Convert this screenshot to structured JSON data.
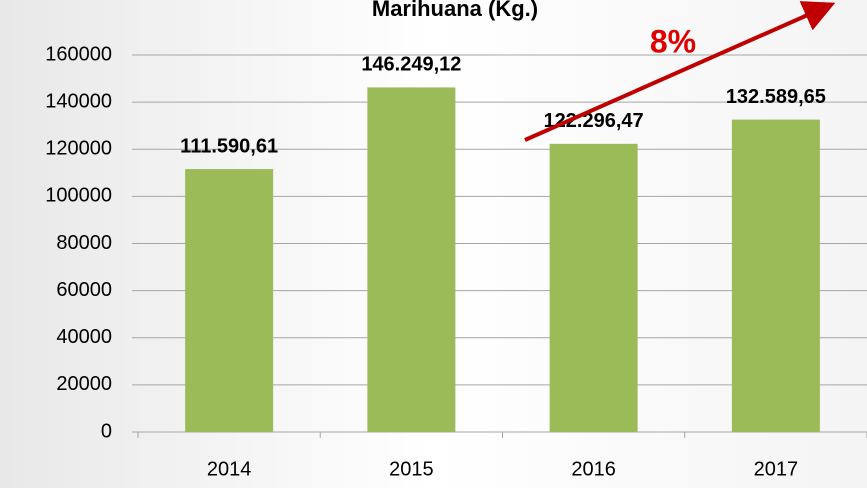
{
  "chart_data": {
    "type": "bar",
    "title": "Marihuana (Kg.)",
    "categories": [
      "2014",
      "2015",
      "2016",
      "2017"
    ],
    "values": [
      111590.61,
      146249.12,
      122296.47,
      132589.65
    ],
    "value_labels": [
      "111.590,61",
      "146.249,12",
      "122.296,47",
      "132.589,65"
    ],
    "color": "#9bbb59",
    "ylim": [
      0,
      160000
    ],
    "yticks": [
      0,
      20000,
      40000,
      60000,
      80000,
      100000,
      120000,
      140000,
      160000
    ],
    "grid": true,
    "annotation": "8%"
  }
}
